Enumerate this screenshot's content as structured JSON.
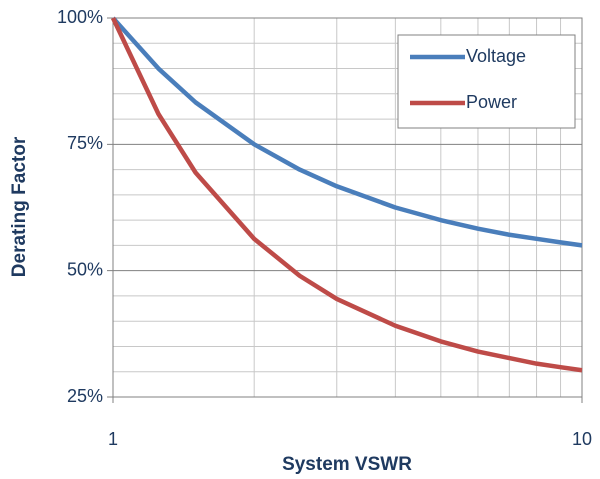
{
  "chart_data": {
    "type": "line",
    "xscale": "log",
    "x_label": "System VSWR",
    "y_label": "Derating Factor",
    "x": [
      1,
      1.25,
      1.5,
      2,
      2.5,
      3,
      4,
      5,
      6,
      7,
      8,
      9,
      10
    ],
    "series": [
      {
        "name": "Voltage",
        "color": "#4a7ebb",
        "values": [
          100,
          90,
          83.3,
          75,
          70,
          66.7,
          62.5,
          60,
          58.3,
          57.1,
          56.3,
          55.6,
          55
        ]
      },
      {
        "name": "Power",
        "color": "#be4b48",
        "values": [
          100,
          81,
          69.4,
          56.3,
          49,
          44.4,
          39.1,
          36,
          34,
          32.7,
          31.6,
          30.9,
          30.3
        ]
      }
    ],
    "xlim": [
      1,
      10
    ],
    "xticks": [
      1,
      10
    ],
    "x_minor_ticks": [
      2,
      3,
      4,
      5,
      6,
      7,
      8,
      9
    ],
    "ylim": [
      25,
      100
    ],
    "yticks": [
      {
        "value": 25,
        "label": "25%"
      },
      {
        "value": 50,
        "label": "50%"
      },
      {
        "value": 75,
        "label": "75%"
      },
      {
        "value": 100,
        "label": "100%"
      }
    ],
    "y_minor_ticks": [
      30,
      35,
      40,
      45,
      55,
      60,
      65,
      70,
      80,
      85,
      90,
      95
    ],
    "grid": true,
    "legend": "upper right"
  }
}
